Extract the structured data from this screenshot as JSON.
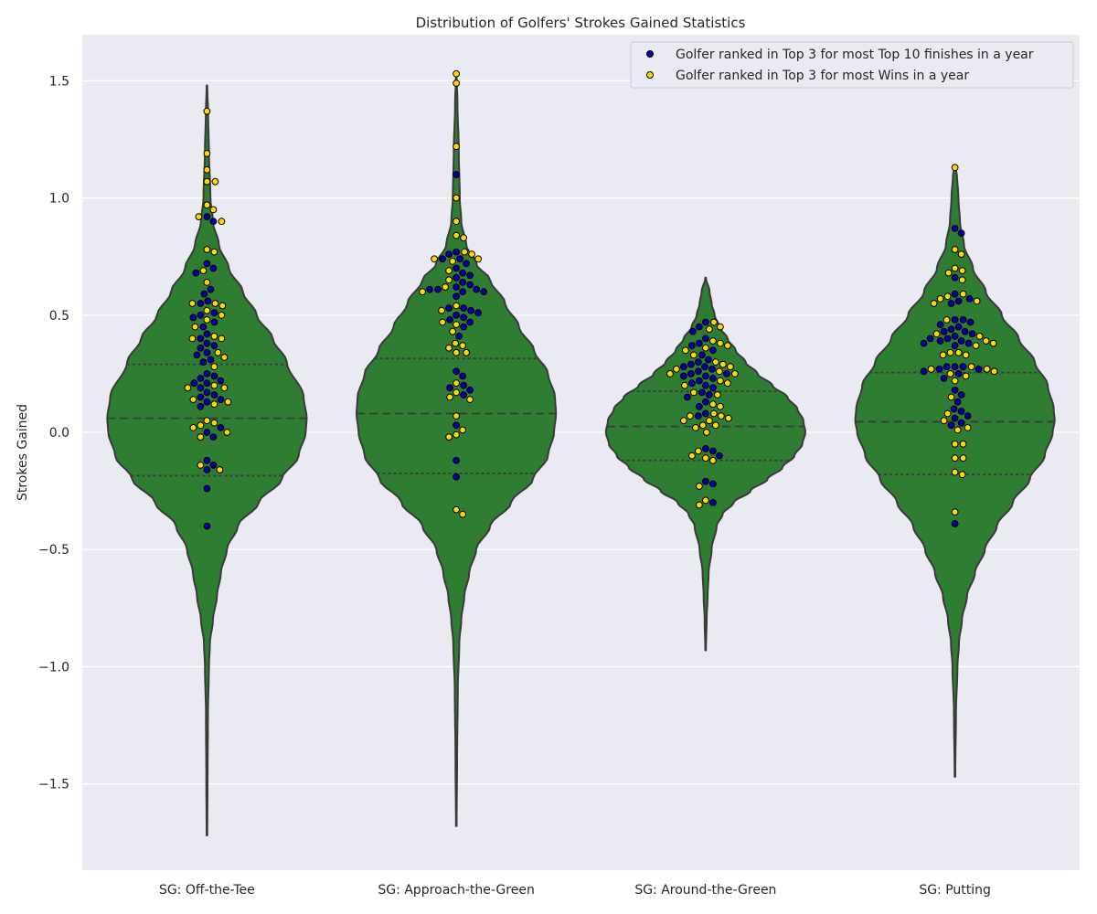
{
  "chart_data": {
    "type": "violin",
    "title": "Distribution of Golfers' Strokes Gained Statistics",
    "xlabel": "",
    "ylabel": "Strokes Gained",
    "ylim": [
      -1.88,
      1.69
    ],
    "yticks": [
      -1.5,
      -1.0,
      -0.5,
      0.0,
      0.5,
      1.0,
      1.5
    ],
    "ytick_labels": [
      "−1.5",
      "−1.0",
      "−0.5",
      "0.0",
      "0.5",
      "1.0",
      "1.5"
    ],
    "grid": true,
    "legend_position": "top-right",
    "colors": {
      "plot_bg": "#eaeaf2",
      "violin_fill": "#2e7d32",
      "violin_edge": "#3a3a3a",
      "top10_points": "#0000aa",
      "wins_points": "#ffd700",
      "point_edge": "#000000"
    },
    "legend": [
      {
        "label": "Golfer ranked in Top 3 for most Top 10 finishes in a year",
        "color": "#0000aa"
      },
      {
        "label": "Golfer ranked in Top 3 for most Wins in a year",
        "color": "#ffd700"
      }
    ],
    "categories": [
      "SG: Off-the-Tee",
      "SG: Approach-the-Green",
      "SG: Around-the-Green",
      "SG: Putting"
    ],
    "violins": [
      {
        "category": "SG: Off-the-Tee",
        "min": -1.72,
        "max": 1.48,
        "q1": -0.185,
        "median": 0.06,
        "q3": 0.29,
        "profile": [
          [
            -1.72,
            0.003
          ],
          [
            -1.5,
            0.006
          ],
          [
            -1.2,
            0.01
          ],
          [
            -1.0,
            0.02
          ],
          [
            -0.9,
            0.03
          ],
          [
            -0.8,
            0.06
          ],
          [
            -0.7,
            0.1
          ],
          [
            -0.6,
            0.14
          ],
          [
            -0.5,
            0.2
          ],
          [
            -0.4,
            0.31
          ],
          [
            -0.3,
            0.52
          ],
          [
            -0.2,
            0.75
          ],
          [
            -0.1,
            0.92
          ],
          [
            0.0,
            0.99
          ],
          [
            0.06,
            1.0
          ],
          [
            0.15,
            0.97
          ],
          [
            0.3,
            0.8
          ],
          [
            0.4,
            0.66
          ],
          [
            0.5,
            0.5
          ],
          [
            0.6,
            0.36
          ],
          [
            0.7,
            0.22
          ],
          [
            0.8,
            0.12
          ],
          [
            0.9,
            0.06
          ],
          [
            1.0,
            0.035
          ],
          [
            1.2,
            0.02
          ],
          [
            1.35,
            0.012
          ],
          [
            1.48,
            0.003
          ]
        ],
        "swarm": {
          "top10": [
            0.72,
            0.7,
            0.68,
            0.61,
            0.59,
            0.56,
            0.55,
            0.51,
            0.5,
            0.49,
            0.47,
            0.45,
            0.42,
            0.4,
            0.38,
            0.37,
            0.36,
            0.34,
            0.33,
            0.31,
            0.3,
            0.25,
            0.24,
            0.23,
            0.22,
            0.21,
            0.21,
            0.19,
            0.17,
            0.16,
            0.15,
            0.14,
            0.13,
            0.11,
            0.02,
            0.0,
            -0.02,
            -0.12,
            -0.14,
            -0.16,
            -0.24,
            -0.4,
            0.92,
            0.9
          ],
          "wins": [
            1.37,
            1.19,
            1.12,
            1.07,
            1.07,
            0.97,
            0.95,
            0.92,
            0.9,
            0.78,
            0.77,
            0.69,
            0.64,
            0.55,
            0.55,
            0.54,
            0.52,
            0.5,
            0.48,
            0.45,
            0.41,
            0.4,
            0.4,
            0.34,
            0.32,
            0.28,
            0.2,
            0.19,
            0.19,
            0.14,
            0.13,
            0.12,
            0.05,
            0.04,
            0.03,
            0.02,
            0.0,
            -0.02,
            -0.14,
            -0.16
          ]
        }
      },
      {
        "category": "SG: Approach-the-Green",
        "min": -1.68,
        "max": 1.53,
        "q1": -0.175,
        "median": 0.08,
        "q3": 0.315,
        "profile": [
          [
            -1.68,
            0.003
          ],
          [
            -1.4,
            0.008
          ],
          [
            -1.1,
            0.015
          ],
          [
            -0.9,
            0.03
          ],
          [
            -0.8,
            0.05
          ],
          [
            -0.7,
            0.08
          ],
          [
            -0.6,
            0.13
          ],
          [
            -0.5,
            0.2
          ],
          [
            -0.4,
            0.34
          ],
          [
            -0.3,
            0.55
          ],
          [
            -0.2,
            0.77
          ],
          [
            -0.1,
            0.92
          ],
          [
            0.0,
            0.98
          ],
          [
            0.08,
            1.0
          ],
          [
            0.15,
            0.99
          ],
          [
            0.25,
            0.92
          ],
          [
            0.35,
            0.78
          ],
          [
            0.45,
            0.63
          ],
          [
            0.55,
            0.49
          ],
          [
            0.65,
            0.34
          ],
          [
            0.72,
            0.2
          ],
          [
            0.8,
            0.1
          ],
          [
            0.9,
            0.05
          ],
          [
            1.0,
            0.035
          ],
          [
            1.2,
            0.025
          ],
          [
            1.4,
            0.012
          ],
          [
            1.53,
            0.003
          ]
        ],
        "swarm": {
          "top10": [
            1.1,
            0.77,
            0.76,
            0.74,
            0.74,
            0.72,
            0.7,
            0.68,
            0.67,
            0.66,
            0.64,
            0.63,
            0.62,
            0.61,
            0.61,
            0.61,
            0.6,
            0.6,
            0.58,
            0.53,
            0.53,
            0.52,
            0.51,
            0.5,
            0.49,
            0.48,
            0.47,
            0.45,
            0.41,
            0.26,
            0.24,
            0.2,
            0.19,
            0.18,
            0.16,
            0.03,
            -0.12,
            -0.19
          ],
          "wins": [
            1.53,
            1.49,
            1.22,
            1.0,
            0.9,
            0.84,
            0.83,
            0.77,
            0.76,
            0.74,
            0.74,
            0.73,
            0.69,
            0.65,
            0.62,
            0.6,
            0.54,
            0.52,
            0.47,
            0.46,
            0.43,
            0.38,
            0.37,
            0.36,
            0.34,
            0.34,
            0.21,
            0.17,
            0.15,
            0.14,
            0.07,
            0.01,
            -0.01,
            -0.02,
            -0.33,
            -0.35
          ]
        }
      },
      {
        "category": "SG: Around-the-Green",
        "min": -0.93,
        "max": 0.66,
        "q1": -0.12,
        "median": 0.025,
        "q3": 0.175,
        "profile": [
          [
            -0.93,
            0.003
          ],
          [
            -0.8,
            0.01
          ],
          [
            -0.7,
            0.02
          ],
          [
            -0.6,
            0.03
          ],
          [
            -0.5,
            0.06
          ],
          [
            -0.4,
            0.11
          ],
          [
            -0.35,
            0.17
          ],
          [
            -0.3,
            0.28
          ],
          [
            -0.25,
            0.45
          ],
          [
            -0.2,
            0.62
          ],
          [
            -0.15,
            0.77
          ],
          [
            -0.1,
            0.89
          ],
          [
            -0.05,
            0.97
          ],
          [
            0.0,
            1.0
          ],
          [
            0.05,
            0.98
          ],
          [
            0.1,
            0.92
          ],
          [
            0.15,
            0.82
          ],
          [
            0.2,
            0.67
          ],
          [
            0.25,
            0.52
          ],
          [
            0.3,
            0.4
          ],
          [
            0.35,
            0.3
          ],
          [
            0.4,
            0.22
          ],
          [
            0.45,
            0.14
          ],
          [
            0.5,
            0.09
          ],
          [
            0.55,
            0.06
          ],
          [
            0.6,
            0.04
          ],
          [
            0.66,
            0.003
          ]
        ],
        "swarm": {
          "top10": [
            0.47,
            0.45,
            0.43,
            0.4,
            0.38,
            0.37,
            0.35,
            0.33,
            0.31,
            0.3,
            0.29,
            0.28,
            0.28,
            0.27,
            0.26,
            0.25,
            0.25,
            0.24,
            0.24,
            0.23,
            0.22,
            0.21,
            0.2,
            0.19,
            0.17,
            0.16,
            0.15,
            0.13,
            0.11,
            0.08,
            0.07,
            -0.07,
            -0.08,
            -0.1,
            -0.21,
            -0.22,
            -0.3
          ],
          "wins": [
            0.47,
            0.45,
            0.44,
            0.39,
            0.38,
            0.37,
            0.36,
            0.35,
            0.33,
            0.3,
            0.29,
            0.28,
            0.27,
            0.26,
            0.25,
            0.25,
            0.22,
            0.21,
            0.2,
            0.17,
            0.16,
            0.12,
            0.11,
            0.08,
            0.07,
            0.07,
            0.06,
            0.05,
            0.05,
            0.03,
            0.03,
            0.02,
            0.0,
            -0.08,
            -0.1,
            -0.11,
            -0.12,
            -0.23,
            -0.29,
            -0.31
          ]
        }
      },
      {
        "category": "SG: Putting",
        "min": -1.47,
        "max": 1.13,
        "q1": -0.18,
        "median": 0.045,
        "q3": 0.255,
        "profile": [
          [
            -1.47,
            0.003
          ],
          [
            -1.2,
            0.01
          ],
          [
            -1.0,
            0.025
          ],
          [
            -0.9,
            0.04
          ],
          [
            -0.8,
            0.07
          ],
          [
            -0.7,
            0.12
          ],
          [
            -0.6,
            0.2
          ],
          [
            -0.5,
            0.3
          ],
          [
            -0.4,
            0.42
          ],
          [
            -0.3,
            0.58
          ],
          [
            -0.2,
            0.75
          ],
          [
            -0.1,
            0.9
          ],
          [
            0.0,
            0.98
          ],
          [
            0.05,
            1.0
          ],
          [
            0.1,
            0.99
          ],
          [
            0.2,
            0.93
          ],
          [
            0.3,
            0.8
          ],
          [
            0.4,
            0.64
          ],
          [
            0.5,
            0.47
          ],
          [
            0.6,
            0.31
          ],
          [
            0.7,
            0.18
          ],
          [
            0.8,
            0.09
          ],
          [
            0.9,
            0.05
          ],
          [
            1.0,
            0.035
          ],
          [
            1.1,
            0.02
          ],
          [
            1.13,
            0.003
          ]
        ],
        "swarm": {
          "top10": [
            0.87,
            0.85,
            0.66,
            0.59,
            0.57,
            0.56,
            0.55,
            0.48,
            0.48,
            0.47,
            0.46,
            0.45,
            0.44,
            0.43,
            0.43,
            0.42,
            0.41,
            0.4,
            0.4,
            0.39,
            0.39,
            0.38,
            0.38,
            0.37,
            0.28,
            0.28,
            0.28,
            0.27,
            0.27,
            0.26,
            0.25,
            0.23,
            0.18,
            0.16,
            0.13,
            0.1,
            0.09,
            0.07,
            0.06,
            0.04,
            0.03,
            -0.39
          ],
          "wins": [
            1.13,
            0.78,
            0.76,
            0.7,
            0.69,
            0.68,
            0.65,
            0.59,
            0.58,
            0.57,
            0.56,
            0.55,
            0.48,
            0.42,
            0.41,
            0.39,
            0.38,
            0.37,
            0.34,
            0.34,
            0.33,
            0.33,
            0.28,
            0.27,
            0.27,
            0.26,
            0.25,
            0.24,
            0.22,
            0.15,
            0.08,
            0.05,
            0.02,
            0.01,
            -0.05,
            -0.05,
            -0.11,
            -0.11,
            -0.17,
            -0.18,
            -0.34
          ]
        }
      }
    ]
  }
}
